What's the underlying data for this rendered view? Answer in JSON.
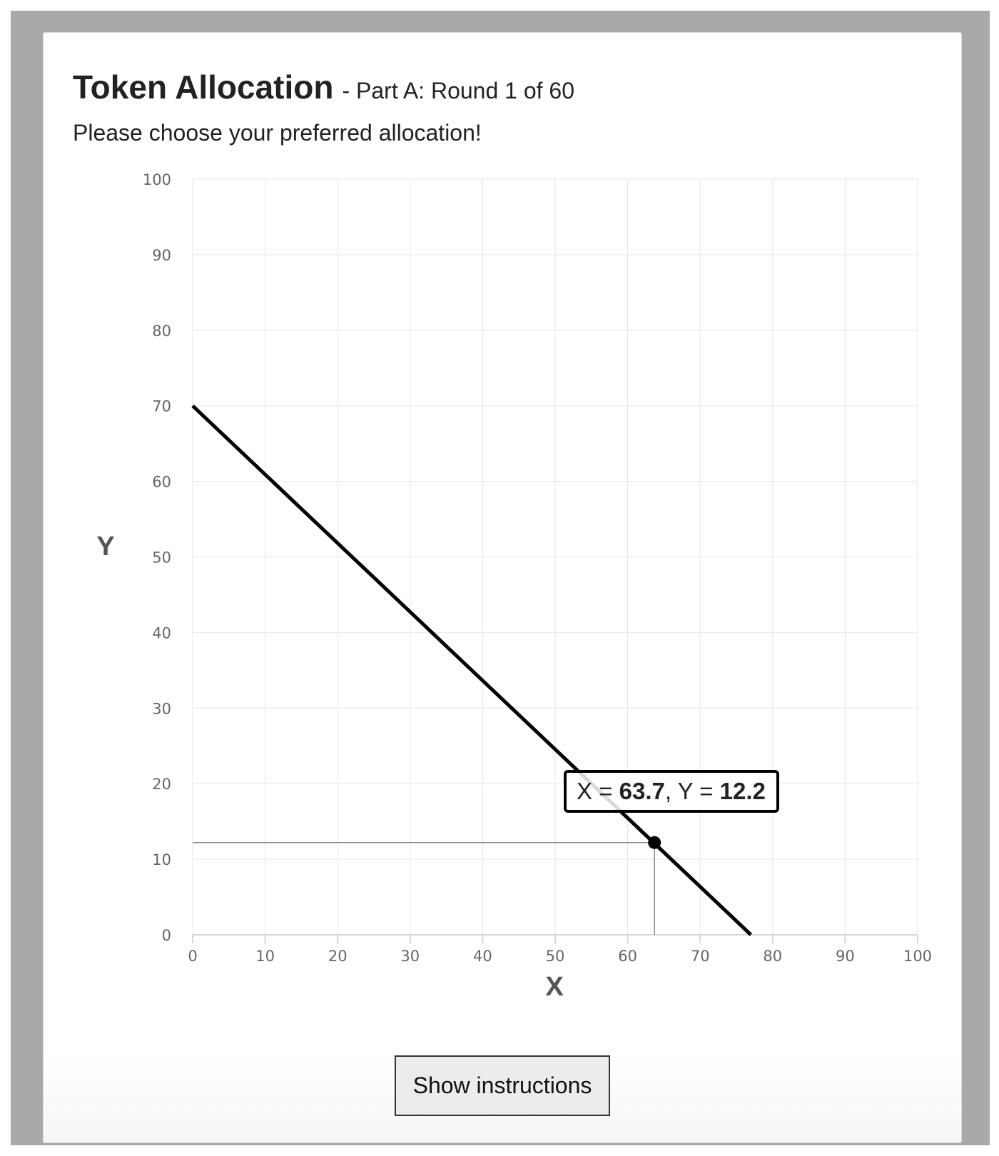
{
  "header": {
    "title": "Token Allocation",
    "subtitle": "- Part A: Round 1 of 60",
    "instruction": "Please choose your preferred allocation!"
  },
  "tooltip": {
    "x_prefix": "X = ",
    "x_value": "63.7",
    "separator": ", Y = ",
    "y_value": "12.2"
  },
  "actions": {
    "show_instructions_label": "Show instructions"
  },
  "chart_data": {
    "type": "line",
    "xlabel": "X",
    "ylabel": "Y",
    "xlim": [
      0,
      100
    ],
    "ylim": [
      0,
      100
    ],
    "x_ticks": [
      0,
      10,
      20,
      30,
      40,
      50,
      60,
      70,
      80,
      90,
      100
    ],
    "y_ticks": [
      0,
      10,
      20,
      30,
      40,
      50,
      60,
      70,
      80,
      90,
      100
    ],
    "grid": true,
    "series": [
      {
        "x": [
          0,
          77
        ],
        "y": [
          70,
          0
        ],
        "color": "#000000"
      }
    ],
    "selected_point": {
      "x": 63.7,
      "y": 12.2
    }
  }
}
